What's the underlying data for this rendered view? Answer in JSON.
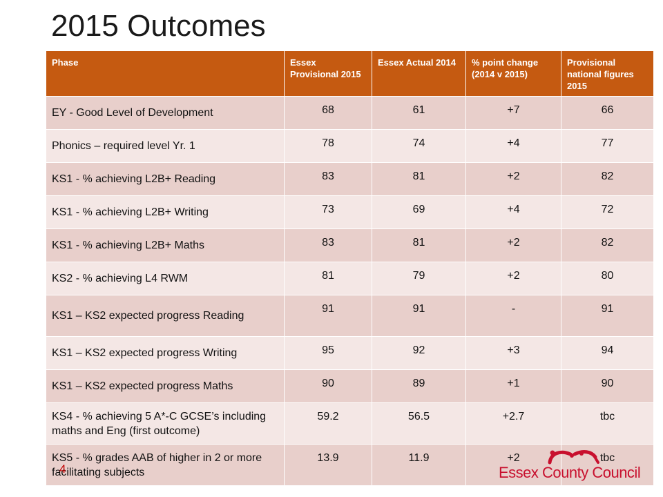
{
  "title": "2015 Outcomes",
  "table": {
    "headers": [
      "Phase",
      "Essex Provisional 2015",
      "Essex Actual 2014",
      "% point change (2014 v 2015)",
      "Provisional national figures 2015"
    ],
    "rows": [
      [
        "EY - Good Level of Development",
        "68",
        "61",
        "+7",
        "66"
      ],
      [
        "Phonics – required level Yr. 1",
        "78",
        "74",
        "+4",
        "77"
      ],
      [
        "KS1 - % achieving L2B+ Reading",
        "83",
        "81",
        "+2",
        "82"
      ],
      [
        "KS1 - % achieving L2B+ Writing",
        "73",
        "69",
        "+4",
        "72"
      ],
      [
        "KS1 - % achieving L2B+ Maths",
        "83",
        "81",
        "+2",
        "82"
      ],
      [
        "KS2 - % achieving L4 RWM",
        "81",
        "79",
        "+2",
        "80"
      ],
      [
        "KS1 – KS2 expected progress Reading",
        "91",
        "91",
        "-",
        "91"
      ],
      [
        "KS1 – KS2 expected progress  Writing",
        "95",
        "92",
        "+3",
        "94"
      ],
      [
        "KS1 – KS2 expected progress  Maths",
        "90",
        "89",
        "+1",
        "90"
      ],
      [
        "KS4 - % achieving 5 A*-C GCSE’s including maths and Eng (first outcome)",
        "59.2",
        "56.5",
        "+2.7",
        "tbc"
      ],
      [
        "KS5 - % grades AAB of higher in 2 or more facilitating subjects",
        "13.9",
        "11.9",
        "+2",
        "tbc"
      ]
    ]
  },
  "page_number": "4",
  "logo_text": "Essex County Council",
  "colors": {
    "header_bg": "#c55a11",
    "row_odd": "#e8cfcb",
    "row_even": "#f4e7e5",
    "brand_red": "#c8102e"
  },
  "chart_data": {
    "type": "table",
    "title": "2015 Outcomes",
    "columns": [
      "Phase",
      "Essex Provisional 2015",
      "Essex Actual 2014",
      "% point change (2014 v 2015)",
      "Provisional national figures 2015"
    ],
    "rows": [
      [
        "EY - Good Level of Development",
        "68",
        "61",
        "+7",
        "66"
      ],
      [
        "Phonics – required level Yr. 1",
        "78",
        "74",
        "+4",
        "77"
      ],
      [
        "KS1 - % achieving L2B+ Reading",
        "83",
        "81",
        "+2",
        "82"
      ],
      [
        "KS1 - % achieving L2B+ Writing",
        "73",
        "69",
        "+4",
        "72"
      ],
      [
        "KS1 - % achieving L2B+ Maths",
        "83",
        "81",
        "+2",
        "82"
      ],
      [
        "KS2 - % achieving L4 RWM",
        "81",
        "79",
        "+2",
        "80"
      ],
      [
        "KS1 – KS2 expected progress Reading",
        "91",
        "91",
        "-",
        "91"
      ],
      [
        "KS1 – KS2 expected progress  Writing",
        "95",
        "92",
        "+3",
        "94"
      ],
      [
        "KS1 – KS2 expected progress  Maths",
        "90",
        "89",
        "+1",
        "90"
      ],
      [
        "KS4 - % achieving 5 A*-C GCSE’s including maths and Eng (first outcome)",
        "59.2",
        "56.5",
        "+2.7",
        "tbc"
      ],
      [
        "KS5 - % grades AAB of higher in 2 or more facilitating subjects",
        "13.9",
        "11.9",
        "+2",
        "tbc"
      ]
    ]
  }
}
